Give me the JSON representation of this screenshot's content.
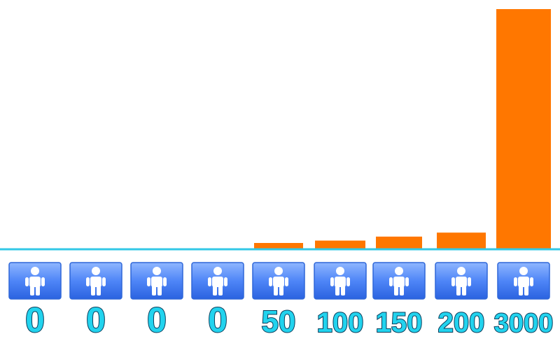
{
  "chart_data": {
    "type": "bar",
    "categories": [
      "0",
      "0",
      "0",
      "0",
      "50",
      "100",
      "150",
      "200",
      "3000"
    ],
    "values": [
      0,
      0,
      0,
      0,
      50,
      100,
      150,
      200,
      3000
    ],
    "title": "",
    "xlabel": "",
    "ylabel": "",
    "icon": "person-icon",
    "colors": {
      "bar": "#ff7700",
      "baseline": "#33c8e6",
      "tile": "#4f86f7",
      "label": "#22d3ee"
    }
  }
}
